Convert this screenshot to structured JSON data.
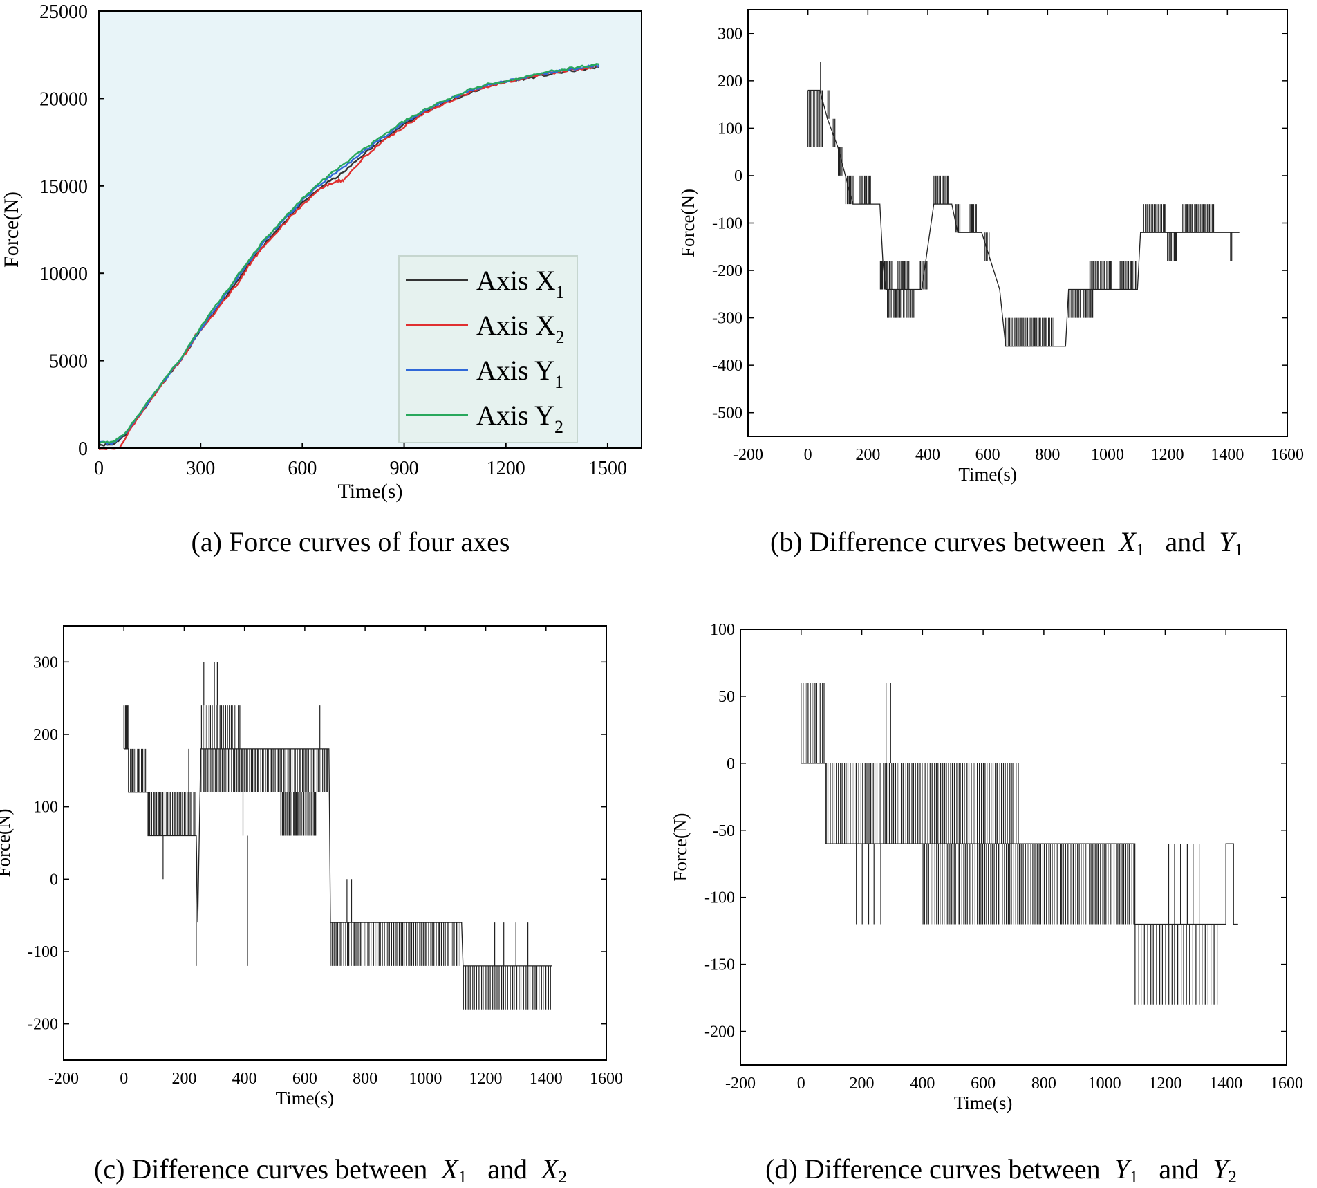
{
  "figure": {
    "captions": [
      {
        "id": "a",
        "prefix": "(a) Force curves of four axes",
        "var1": "",
        "var1_sub": "",
        "mid": "",
        "var2": "",
        "var2_sub": ""
      },
      {
        "id": "b",
        "prefix": "(b) Difference curves between",
        "var1": "X",
        "var1_sub": "1",
        "mid": "and",
        "var2": "Y",
        "var2_sub": "1"
      },
      {
        "id": "c",
        "prefix": "(c) Difference curves between",
        "var1": "X",
        "var1_sub": "1",
        "mid": "and",
        "var2": "X",
        "var2_sub": "2"
      },
      {
        "id": "d",
        "prefix": "(d) Difference curves between",
        "var1": "Y",
        "var1_sub": "1",
        "mid": "and",
        "var2": "Y",
        "var2_sub": "2"
      }
    ]
  },
  "chart_data": [
    {
      "id": "a",
      "type": "line",
      "title": "",
      "xlabel": "Time(s)",
      "ylabel": "Force(N)",
      "xlim": [
        0,
        1600
      ],
      "ylim": [
        0,
        25000
      ],
      "xticks": [
        0,
        300,
        600,
        900,
        1200,
        1500
      ],
      "yticks": [
        0,
        5000,
        10000,
        15000,
        20000,
        25000
      ],
      "background": "#e8f4f8",
      "legend": {
        "position": "bottom-right"
      },
      "series": [
        {
          "name": "Axis X",
          "sub": "1",
          "color": "#333333",
          "points": [
            [
              0,
              200
            ],
            [
              40,
              200
            ],
            [
              75,
              700
            ],
            [
              120,
              1900
            ],
            [
              180,
              3500
            ],
            [
              240,
              5000
            ],
            [
              300,
              6700
            ],
            [
              360,
              8300
            ],
            [
              420,
              9850
            ],
            [
              480,
              11500
            ],
            [
              540,
              12800
            ],
            [
              600,
              14000
            ],
            [
              660,
              15000
            ],
            [
              720,
              15750
            ],
            [
              780,
              16800
            ],
            [
              840,
              17700
            ],
            [
              900,
              18500
            ],
            [
              960,
              19200
            ],
            [
              1020,
              19750
            ],
            [
              1080,
              20200
            ],
            [
              1140,
              20650
            ],
            [
              1200,
              21000
            ],
            [
              1260,
              21150
            ],
            [
              1320,
              21350
            ],
            [
              1380,
              21550
            ],
            [
              1440,
              21700
            ],
            [
              1475,
              21800
            ]
          ]
        },
        {
          "name": "Axis X",
          "sub": "2",
          "color": "#e03030",
          "points": [
            [
              0,
              0
            ],
            [
              60,
              0
            ],
            [
              120,
              1900
            ],
            [
              180,
              3500
            ],
            [
              240,
              5000
            ],
            [
              270,
              5800
            ],
            [
              285,
              6500
            ],
            [
              300,
              6700
            ],
            [
              360,
              8200
            ],
            [
              420,
              9700
            ],
            [
              440,
              10400
            ],
            [
              480,
              11400
            ],
            [
              540,
              12700
            ],
            [
              600,
              13900
            ],
            [
              660,
              14900
            ],
            [
              700,
              15300
            ],
            [
              720,
              15300
            ],
            [
              780,
              16600
            ],
            [
              840,
              17600
            ],
            [
              900,
              18400
            ],
            [
              960,
              19150
            ],
            [
              1020,
              19700
            ],
            [
              1080,
              20250
            ],
            [
              1140,
              20650
            ],
            [
              1200,
              20950
            ],
            [
              1260,
              21150
            ],
            [
              1320,
              21400
            ],
            [
              1380,
              21600
            ],
            [
              1440,
              21750
            ],
            [
              1475,
              21850
            ]
          ]
        },
        {
          "name": "Axis Y",
          "sub": "1",
          "color": "#2f68d8",
          "points": [
            [
              0,
              300
            ],
            [
              40,
              300
            ],
            [
              75,
              750
            ],
            [
              120,
              1950
            ],
            [
              180,
              3550
            ],
            [
              240,
              5050
            ],
            [
              300,
              6800
            ],
            [
              360,
              8450
            ],
            [
              420,
              10050
            ],
            [
              480,
              11650
            ],
            [
              540,
              12950
            ],
            [
              600,
              14150
            ],
            [
              660,
              15200
            ],
            [
              720,
              16050
            ],
            [
              780,
              16950
            ],
            [
              840,
              17800
            ],
            [
              900,
              18600
            ],
            [
              960,
              19300
            ],
            [
              1020,
              19850
            ],
            [
              1080,
              20350
            ],
            [
              1140,
              20750
            ],
            [
              1200,
              21000
            ],
            [
              1260,
              21200
            ],
            [
              1320,
              21450
            ],
            [
              1380,
              21650
            ],
            [
              1440,
              21800
            ],
            [
              1475,
              21900
            ]
          ]
        },
        {
          "name": "Axis Y",
          "sub": "2",
          "color": "#28a85c",
          "points": [
            [
              0,
              300
            ],
            [
              40,
              300
            ],
            [
              75,
              800
            ],
            [
              120,
              2000
            ],
            [
              180,
              3600
            ],
            [
              240,
              5100
            ],
            [
              300,
              6900
            ],
            [
              360,
              8550
            ],
            [
              420,
              10150
            ],
            [
              480,
              11750
            ],
            [
              540,
              13050
            ],
            [
              600,
              14250
            ],
            [
              660,
              15350
            ],
            [
              720,
              16200
            ],
            [
              780,
              17100
            ],
            [
              840,
              17900
            ],
            [
              900,
              18700
            ],
            [
              960,
              19350
            ],
            [
              1020,
              19900
            ],
            [
              1080,
              20400
            ],
            [
              1140,
              20800
            ],
            [
              1200,
              21000
            ],
            [
              1260,
              21250
            ],
            [
              1320,
              21500
            ],
            [
              1380,
              21700
            ],
            [
              1440,
              21850
            ],
            [
              1475,
              21950
            ]
          ]
        }
      ]
    },
    {
      "id": "b",
      "type": "line",
      "title": "",
      "xlabel": "Time(s)",
      "ylabel": "Force(N)",
      "xlim": [
        -200,
        1600
      ],
      "ylim": [
        -550,
        350
      ],
      "xticks": [
        -200,
        0,
        200,
        400,
        600,
        800,
        1000,
        1200,
        1400,
        1600
      ],
      "yticks": [
        -500,
        -400,
        -300,
        -200,
        -100,
        0,
        100,
        200,
        300
      ],
      "series": [
        {
          "name": "X1 - Y1",
          "color": "#222222",
          "segments": [
            [
              0,
              180,
              60,
              12
            ],
            [
              40,
              180,
              240,
              1
            ],
            [
              65,
              180,
              120,
              2
            ],
            [
              80,
              120,
              60,
              3
            ],
            [
              100,
              60,
              0,
              4
            ],
            [
              125,
              0,
              -60,
              7
            ],
            [
              170,
              -60,
              0,
              10
            ],
            [
              240,
              -240,
              -180,
              10
            ],
            [
              265,
              -300,
              -240,
              14
            ],
            [
              300,
              -240,
              -180,
              10
            ],
            [
              330,
              -300,
              -240,
              6
            ],
            [
              370,
              -240,
              -180,
              8
            ],
            [
              420,
              -60,
              0,
              12
            ],
            [
              490,
              -120,
              -60,
              5
            ],
            [
              540,
              -120,
              -60,
              6
            ],
            [
              590,
              -180,
              -120,
              4
            ],
            [
              630,
              -240,
              -240,
              1
            ],
            [
              660,
              -360,
              -300,
              38
            ],
            [
              870,
              -300,
              -240,
              10
            ],
            [
              920,
              -300,
              -240,
              8
            ],
            [
              940,
              -240,
              -180,
              18
            ],
            [
              1040,
              -240,
              -180,
              14
            ],
            [
              1120,
              -120,
              -60,
              18
            ],
            [
              1200,
              -180,
              -120,
              8
            ],
            [
              1250,
              -120,
              -60,
              25
            ],
            [
              1410,
              -180,
              -120,
              2
            ]
          ],
          "baseline": [
            [
              0,
              180
            ],
            [
              40,
              180
            ],
            [
              65,
              120
            ],
            [
              100,
              60
            ],
            [
              125,
              0
            ],
            [
              150,
              -60
            ],
            [
              240,
              -60
            ],
            [
              250,
              -180
            ],
            [
              260,
              -240
            ],
            [
              380,
              -240
            ],
            [
              420,
              -60
            ],
            [
              480,
              -60
            ],
            [
              500,
              -120
            ],
            [
              580,
              -120
            ],
            [
              610,
              -180
            ],
            [
              640,
              -240
            ],
            [
              660,
              -360
            ],
            [
              860,
              -360
            ],
            [
              870,
              -240
            ],
            [
              1100,
              -240
            ],
            [
              1110,
              -120
            ],
            [
              1440,
              -120
            ]
          ]
        }
      ]
    },
    {
      "id": "c",
      "type": "line",
      "title": "",
      "xlabel": "Time(s)",
      "ylabel": "Force(N)",
      "xlim": [
        -200,
        1600
      ],
      "ylim": [
        -250,
        350
      ],
      "xticks": [
        -200,
        0,
        200,
        400,
        600,
        800,
        1000,
        1200,
        1400,
        1600
      ],
      "yticks": [
        -200,
        -100,
        0,
        100,
        200,
        300
      ],
      "series": [
        {
          "name": "X1 - X2",
          "color": "#222222",
          "baseline": [
            [
              0,
              180
            ],
            [
              15,
              180
            ],
            [
              15,
              120
            ],
            [
              80,
              120
            ],
            [
              80,
              60
            ],
            [
              240,
              60
            ],
            [
              245,
              -60
            ],
            [
              255,
              180
            ],
            [
              680,
              180
            ],
            [
              685,
              -60
            ],
            [
              1120,
              -60
            ],
            [
              1125,
              -120
            ],
            [
              1420,
              -120
            ]
          ]
        }
      ]
    },
    {
      "id": "d",
      "type": "line",
      "title": "",
      "xlabel": "Time(s)",
      "ylabel": "Force(N)",
      "xlim": [
        -200,
        1600
      ],
      "ylim": [
        -225,
        100
      ],
      "xticks": [
        -200,
        0,
        200,
        400,
        600,
        800,
        1000,
        1200,
        1400,
        1600
      ],
      "yticks": [
        -200,
        -150,
        -100,
        -50,
        0,
        50,
        100
      ],
      "series": [
        {
          "name": "Y1 - Y2",
          "color": "#222222",
          "baseline": [
            [
              0,
              0
            ],
            [
              80,
              0
            ],
            [
              80,
              -60
            ],
            [
              400,
              -60
            ],
            [
              400,
              -60
            ],
            [
              1100,
              -60
            ],
            [
              1100,
              -120
            ],
            [
              1400,
              -120
            ],
            [
              1400,
              -60
            ],
            [
              1425,
              -60
            ],
            [
              1425,
              -120
            ],
            [
              1440,
              -120
            ]
          ]
        }
      ]
    }
  ]
}
